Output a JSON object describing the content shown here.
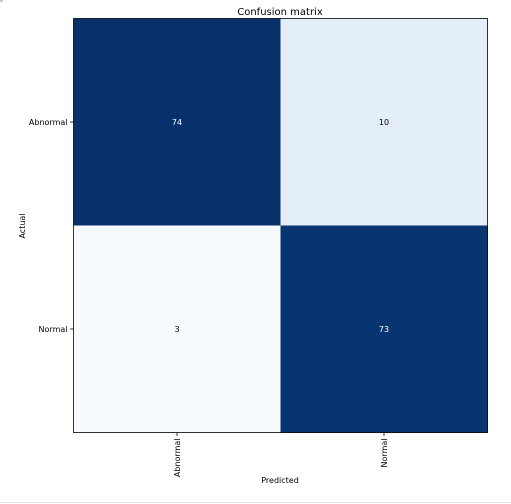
{
  "chart_data": {
    "type": "heatmap",
    "title": "Confusion matrix",
    "xlabel": "Predicted",
    "ylabel": "Actual",
    "x_categories": [
      "Abnormal",
      "Normal"
    ],
    "y_categories": [
      "Abnormal",
      "Normal"
    ],
    "values": [
      [
        74,
        10
      ],
      [
        3,
        73
      ]
    ],
    "colormap": "Blues",
    "color_low": "#f7fbff",
    "color_high": "#08306b",
    "text_color_dark_cell": "#ffffff",
    "text_color_light_cell": "#000000",
    "grid": false
  }
}
